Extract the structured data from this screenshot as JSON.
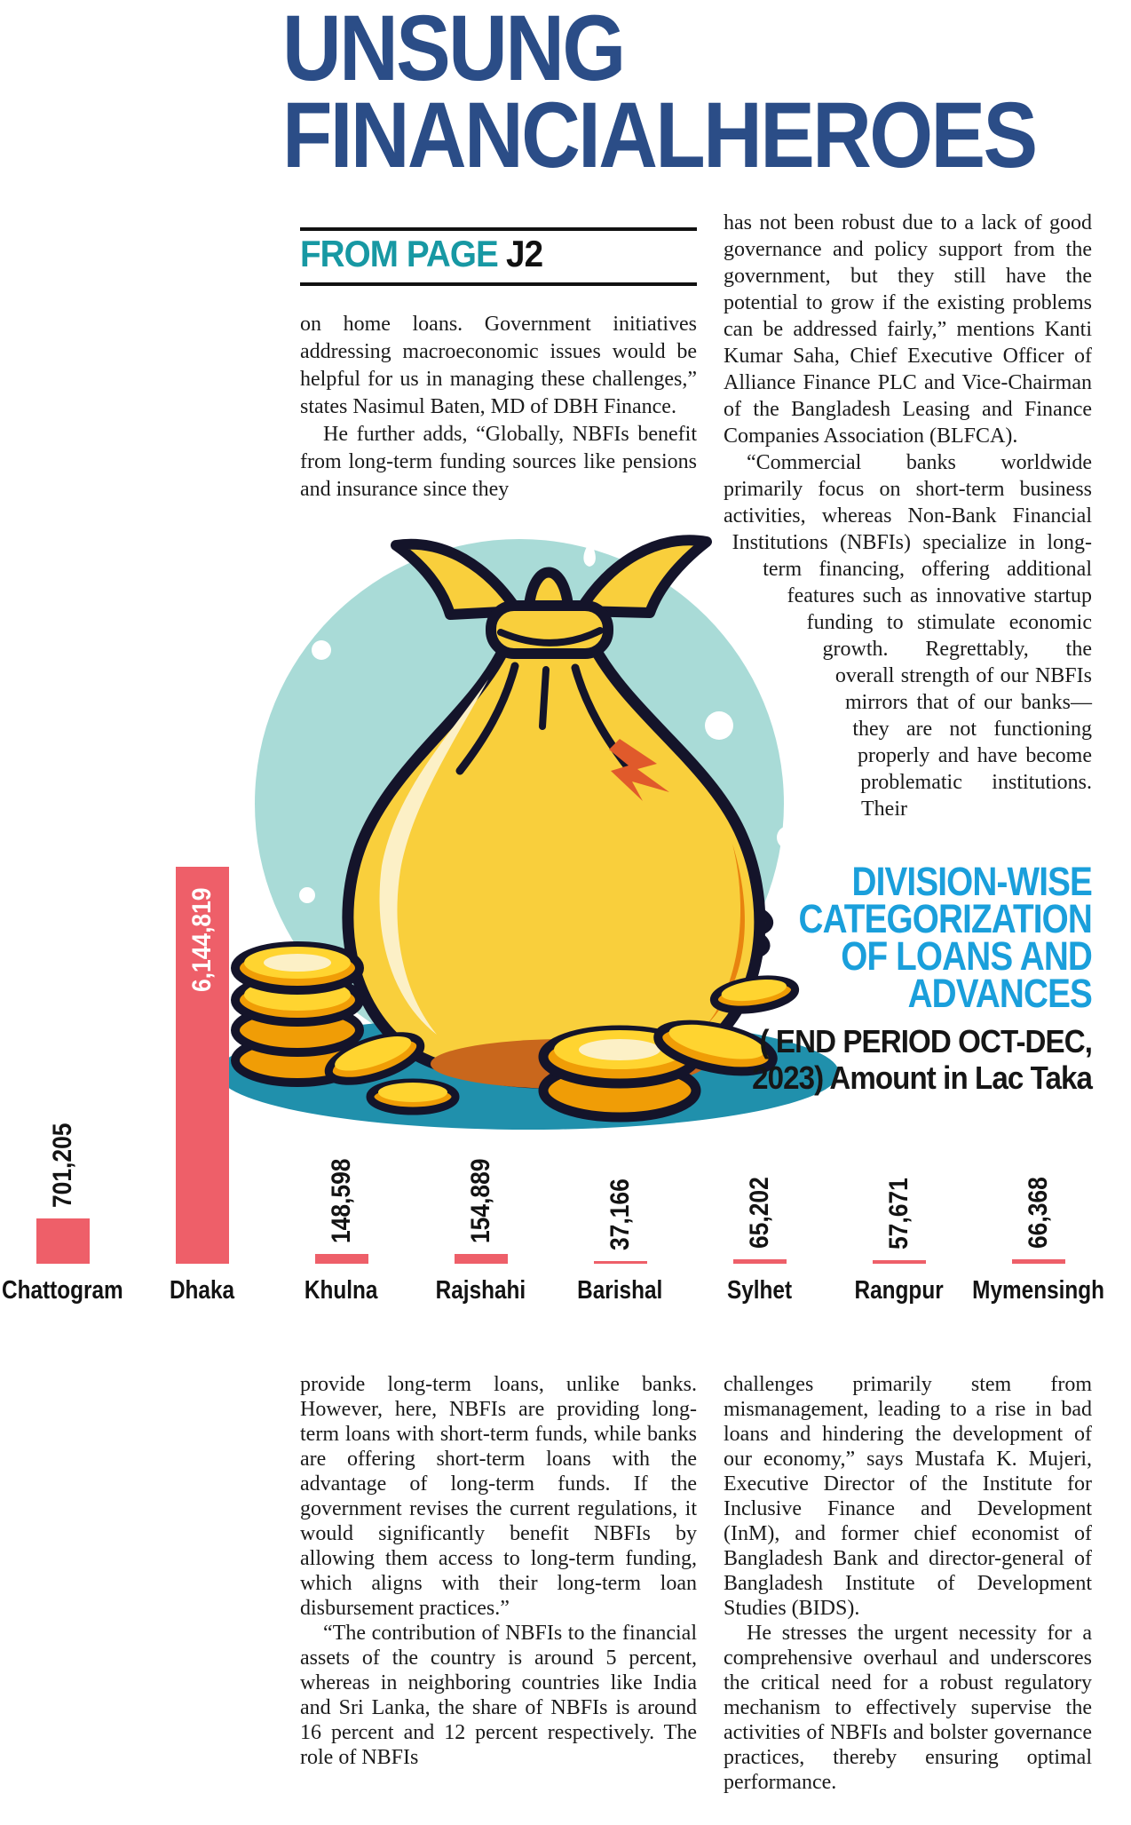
{
  "masthead": {
    "line1": "UNSUNG",
    "line2": "FINANCIALHEROES",
    "color": "#2b4d87"
  },
  "kicker": {
    "label": "FROM PAGE",
    "page_ref": "J2",
    "label_color": "#1798a3"
  },
  "article": {
    "top_left": [
      "on home loans. Government initiatives addressing macroeconomic issues would be helpful for us in managing these challenges,” states Nasimul Baten, MD of DBH Finance.",
      "He further adds, “Globally, NBFIs benefit from long-term funding sources like pensions and insurance since they"
    ],
    "top_right": [
      "has not been robust due to a lack of good governance and policy support from the government, but they still have the potential to grow if the existing problems can be addressed fairly,” mentions Kanti Kumar Saha, Chief Executive Officer of Alliance Finance PLC and Vice-Chairman of the Bangladesh Leasing and Finance Companies Association (BLFCA).",
      "“Commercial banks worldwide primarily focus on short-term business activities, whereas Non-Bank Financial Institutions (NBFIs) specialize in long-term financing, offering additional features such as innovative startup funding to stimulate economic growth. Regrettably, the overall strength of our NBFIs mirrors that of our banks—they are not functioning properly and have become problematic institutions. Their"
    ],
    "bottom_left": [
      "provide long-term loans, unlike banks. However, here, NBFIs are providing long-term loans with short-term funds, while banks are offering short-term loans with the advantage of long-term funds. If the government revises the current regulations, it would significantly benefit NBFIs by allowing them access to long-term funding, which aligns with their long-term loan disbursement practices.”",
      "“The contribution of NBFIs to the financial assets of the country is around 5 percent, whereas in neighboring countries like India and Sri Lanka, the share of NBFIs is around 16 percent and 12 percent respectively. The role of NBFIs"
    ],
    "bottom_right": [
      "challenges primarily stem from mismanagement, leading to a rise in bad loans and hindering the development of our economy,” says Mustafa K. Mujeri, Executive Director of the Institute for Inclusive Finance and Development (InM), and former chief economist of Bangladesh Bank and director-general of Bangladesh Institute of Development Studies (BIDS).",
      "He stresses the urgent necessity for a comprehensive overhaul and underscores the critical need for a robust regulatory mechanism to effectively supervise the activities of NBFIs and bolster governance practices, thereby ensuring optimal performance."
    ]
  },
  "chart": {
    "title_lines": [
      "DIVISION-WISE",
      "CATEGORIZATION",
      "OF LOANS AND",
      "ADVANCES"
    ],
    "subtitle_lines": [
      "( END PERIOD OCT-DEC,",
      "2023)  Amount in Lac Taka"
    ],
    "title_color": "#1a9fdb",
    "bar_color": "#ee5f69"
  },
  "chart_data": {
    "type": "bar",
    "title": "Division-wise categorization of loans and advances",
    "period": "End period Oct-Dec, 2023",
    "unit": "Amount in Lac Taka",
    "categories": [
      "Chattogram",
      "Dhaka",
      "Khulna",
      "Rajshahi",
      "Barishal",
      "Sylhet",
      "Rangpur",
      "Mymensingh"
    ],
    "values": [
      701205,
      6144819,
      148598,
      154889,
      37166,
      65202,
      57671,
      66368
    ],
    "value_labels": [
      "701,205",
      "6,144,819",
      "148,598",
      "154,889",
      "37,166",
      "65,202",
      "57,671",
      "66,368"
    ],
    "ylim": [
      0,
      6144819
    ],
    "grid": false,
    "legend": false
  },
  "illustration": {
    "description": "cartoon money bag with stacks of gold coins on teal circle",
    "circle_color": "#a9dbd7",
    "shadow_color": "#2090ac",
    "bag_color": "#f9cf3c"
  }
}
